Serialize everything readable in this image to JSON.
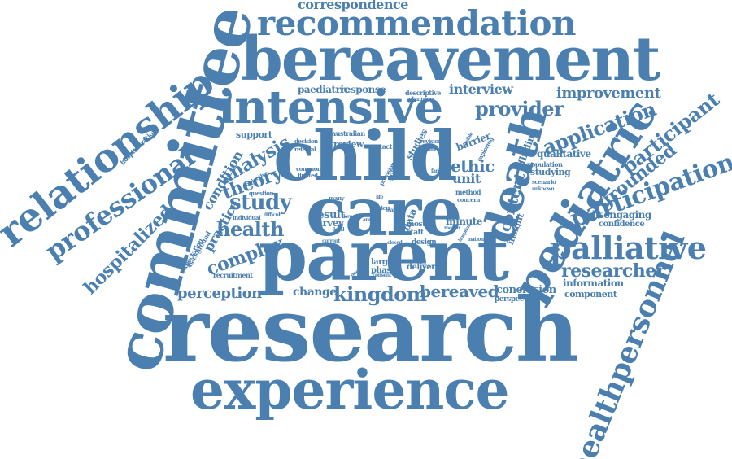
{
  "color": "#4a7fb0",
  "words": {
    "research": "research",
    "parent": "parent",
    "bereavement": "bereavement",
    "child": "child",
    "care": "care",
    "committee": "committee",
    "experience": "experience",
    "intensive": "intensive",
    "recommendation": "recommendation",
    "relationship": "relationship",
    "death": "death",
    "pediatric": "pediatric",
    "palliative": "palliative",
    "participation": "participation",
    "healthpersonnel": "healthpersonnel",
    "professional": "professional",
    "hospitalized": "hospitalized",
    "correspondence": "correspondence",
    "provider": "provider",
    "application": "application",
    "participant": "participant",
    "improvement": "improvement",
    "researcher": "researcher",
    "study": "study",
    "health": "health",
    "analysis": "analysis",
    "theory": "theory",
    "complex": "complex",
    "kingdom": "kingdom",
    "bereaved": "bereaved",
    "perception": "perception",
    "grounded": "grounded",
    "content": "content",
    "practice": "practice",
    "condition": "condition",
    "interview": "interview",
    "ethic": "ethic",
    "unit": "unit",
    "qualitative": "qualitative",
    "studying": "studying",
    "disengaging": "disengaging",
    "confidence": "confidence",
    "information": "information",
    "component": "component",
    "conclusion": "conclusion",
    "change": "change",
    "paediatric": "paediatric",
    "response": "response",
    "support": "support",
    "minute": "minute",
    "result": "result",
    "survey": "survey",
    "studies": "studies",
    "barrier": "barrier",
    "finding": "finding",
    "insight": "insight",
    "review": "review",
    "larger": "larger",
    "phase": "phase",
    "delivery": "delivery",
    "perspective": "perspective",
    "recruitment": "recruitment",
    "expectation": "expectation",
    "background": "background",
    "hospitalization": "hospitalization",
    "population": "population",
    "data": "data",
    "most": "most",
    "staff": "staff",
    "design": "design",
    "method": "method",
    "concern": "concern",
    "decision": "decision",
    "australian": "australian",
    "contact": "contact",
    "descriptive": "descriptive",
    "referral": "referral",
    "common": "common",
    "limited": "limited",
    "question": "question",
    "individual": "individual",
    "difficult": "difficult",
    "objective": "objective",
    "many": "many",
    "guidance": "guidance",
    "provision": "provision",
    "revision": "revision",
    "families": "families",
    "planning": "planning",
    "exploring": "exploring",
    "scenario": "scenario",
    "unknown": "unknown",
    "national": "national",
    "hospital": "hospital",
    "closed": "closed",
    "consent": "consent",
    "ongoing": "ongoing",
    "current": "current",
    "level": "level",
    "picu": "picu",
    "life": "life",
    "family": "family",
    "month": "month",
    "area": "area",
    "team": "team",
    "key": "key",
    "feasible": "feasible"
  }
}
